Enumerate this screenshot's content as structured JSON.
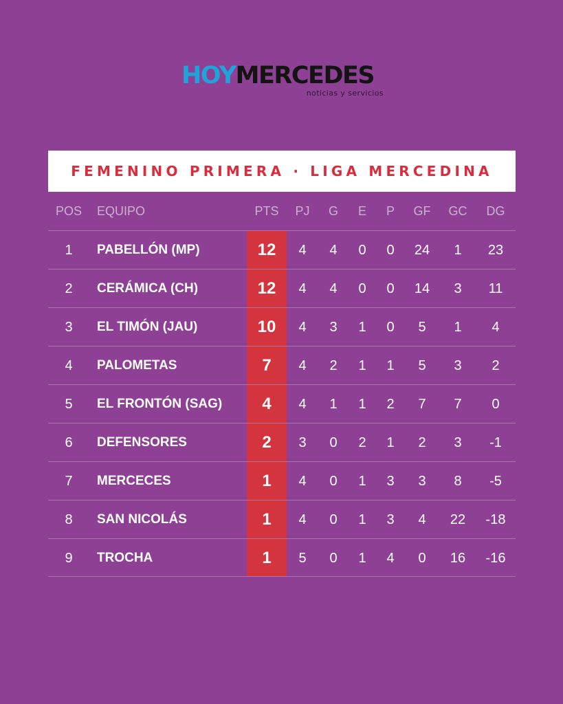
{
  "logo": {
    "hoy": "HOY",
    "mercedes": "MERCEDES",
    "tagline": "noticias y servicios",
    "colors": {
      "hoy": "#1fa3d9",
      "mercedes": "#141414"
    }
  },
  "title": "FEMENINO PRIMERA · LIGA MERCEDINA",
  "colors": {
    "background": "#8e4194",
    "accent": "#d4343d",
    "title": "#d92c3d"
  },
  "table": {
    "headers": {
      "pos": "POS",
      "team": "EQUIPO",
      "pts": "PTS",
      "pj": "PJ",
      "g": "G",
      "e": "E",
      "p": "P",
      "gf": "GF",
      "gc": "GC",
      "dg": "DG"
    },
    "rows": [
      {
        "pos": "1",
        "team": "PABELLÓN (MP)",
        "pts": "12",
        "pj": "4",
        "g": "4",
        "e": "0",
        "p": "0",
        "gf": "24",
        "gc": "1",
        "dg": "23"
      },
      {
        "pos": "2",
        "team": "CERÁMICA (CH)",
        "pts": "12",
        "pj": "4",
        "g": "4",
        "e": "0",
        "p": "0",
        "gf": "14",
        "gc": "3",
        "dg": "11"
      },
      {
        "pos": "3",
        "team": "EL TIMÓN (JAU)",
        "pts": "10",
        "pj": "4",
        "g": "3",
        "e": "1",
        "p": "0",
        "gf": "5",
        "gc": "1",
        "dg": "4"
      },
      {
        "pos": "4",
        "team": "PALOMETAS",
        "pts": "7",
        "pj": "4",
        "g": "2",
        "e": "1",
        "p": "1",
        "gf": "5",
        "gc": "3",
        "dg": "2"
      },
      {
        "pos": "5",
        "team": "EL FRONTÓN (SAG)",
        "pts": "4",
        "pj": "4",
        "g": "1",
        "e": "1",
        "p": "2",
        "gf": "7",
        "gc": "7",
        "dg": "0"
      },
      {
        "pos": "6",
        "team": "DEFENSORES",
        "pts": "2",
        "pj": "3",
        "g": "0",
        "e": "2",
        "p": "1",
        "gf": "2",
        "gc": "3",
        "dg": "-1"
      },
      {
        "pos": "7",
        "team": "MERCECES",
        "pts": "1",
        "pj": "4",
        "g": "0",
        "e": "1",
        "p": "3",
        "gf": "3",
        "gc": "8",
        "dg": "-5"
      },
      {
        "pos": "8",
        "team": "SAN NICOLÁS",
        "pts": "1",
        "pj": "4",
        "g": "0",
        "e": "1",
        "p": "3",
        "gf": "4",
        "gc": "22",
        "dg": "-18"
      },
      {
        "pos": "9",
        "team": "TROCHA",
        "pts": "1",
        "pj": "5",
        "g": "0",
        "e": "1",
        "p": "4",
        "gf": "0",
        "gc": "16",
        "dg": "-16"
      }
    ]
  }
}
